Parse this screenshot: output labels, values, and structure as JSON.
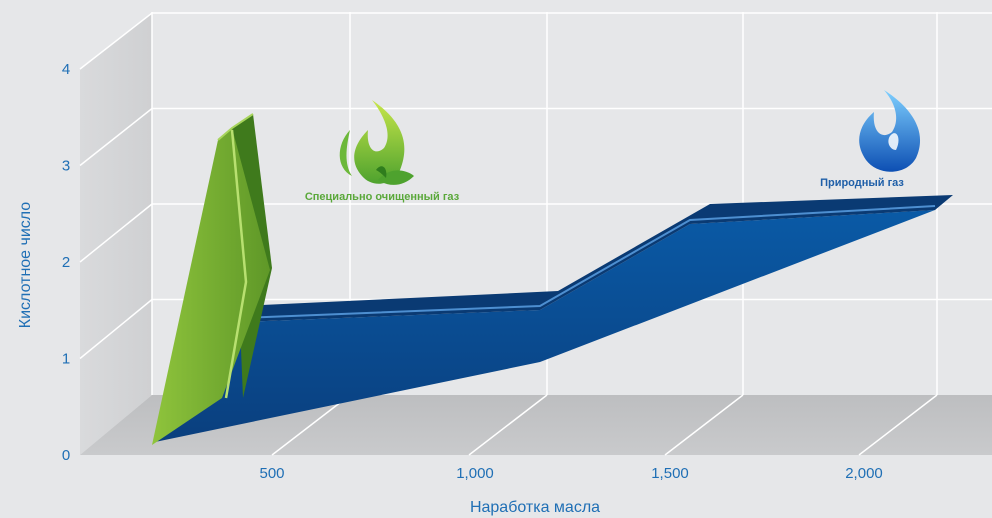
{
  "chart_data": {
    "type": "area",
    "xlabel": "Наработка масла",
    "ylabel": "Кислотное число",
    "x_ticks": [
      "500",
      "1,000",
      "1,500",
      "2,000"
    ],
    "y_ticks": [
      "0",
      "1",
      "2",
      "3",
      "4"
    ],
    "ylim": [
      0,
      4
    ],
    "grid": true,
    "series": [
      {
        "name": "Специально очищенный газ",
        "color": "#6aa32e",
        "x": [
          0,
          250,
          500
        ],
        "y": [
          0,
          3.1,
          3.3
        ],
        "icon": "leaf-flame-icon"
      },
      {
        "name": "Природный газ",
        "color": "#0b4f95",
        "x": [
          0,
          1000,
          1100,
          1600,
          2100
        ],
        "y": [
          0,
          0.85,
          1.05,
          1.75,
          2.45
        ],
        "icon": "flame-icon"
      }
    ]
  }
}
